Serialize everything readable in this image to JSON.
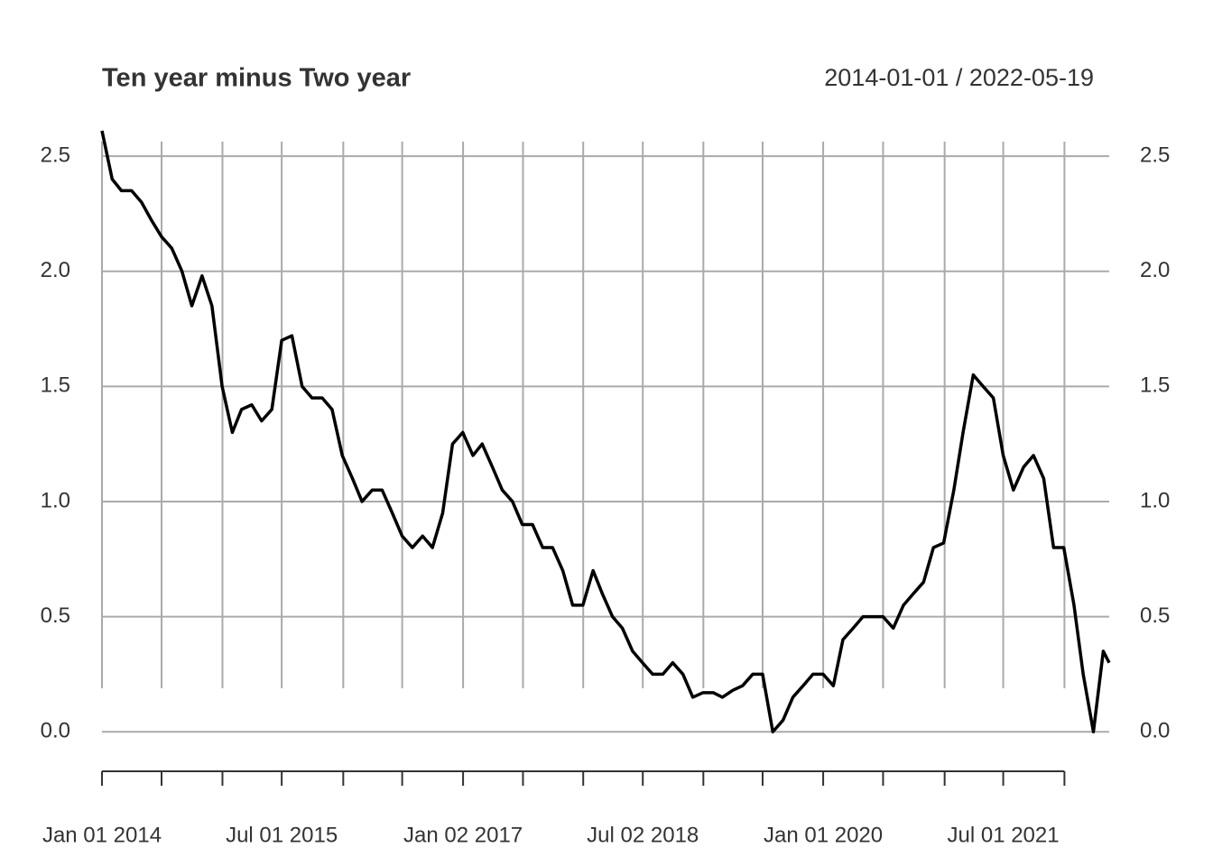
{
  "chart_data": {
    "type": "line",
    "title": "Ten year minus Two year",
    "subtitle": "2014-01-01 / 2022-05-19",
    "x": [
      "2014-01-01",
      "2014-02-01",
      "2014-03-01",
      "2014-04-01",
      "2014-05-01",
      "2014-06-01",
      "2014-07-01",
      "2014-08-01",
      "2014-09-01",
      "2014-10-01",
      "2014-11-01",
      "2014-12-01",
      "2015-01-01",
      "2015-02-01",
      "2015-03-01",
      "2015-04-01",
      "2015-05-01",
      "2015-06-01",
      "2015-07-01",
      "2015-08-01",
      "2015-09-01",
      "2015-10-01",
      "2015-11-01",
      "2015-12-01",
      "2016-01-01",
      "2016-02-01",
      "2016-03-01",
      "2016-04-01",
      "2016-05-01",
      "2016-06-01",
      "2016-07-01",
      "2016-08-01",
      "2016-09-01",
      "2016-10-01",
      "2016-11-01",
      "2016-12-01",
      "2017-01-01",
      "2017-02-01",
      "2017-03-01",
      "2017-04-01",
      "2017-05-01",
      "2017-06-01",
      "2017-07-01",
      "2017-08-01",
      "2017-09-01",
      "2017-10-01",
      "2017-11-01",
      "2017-12-01",
      "2018-01-01",
      "2018-02-01",
      "2018-03-01",
      "2018-04-01",
      "2018-05-01",
      "2018-06-01",
      "2018-07-01",
      "2018-08-01",
      "2018-09-01",
      "2018-10-01",
      "2018-11-01",
      "2018-12-01",
      "2019-01-01",
      "2019-02-01",
      "2019-03-01",
      "2019-04-01",
      "2019-05-01",
      "2019-06-01",
      "2019-07-01",
      "2019-08-01",
      "2019-09-01",
      "2019-10-01",
      "2019-11-01",
      "2019-12-01",
      "2020-01-01",
      "2020-02-01",
      "2020-03-01",
      "2020-04-01",
      "2020-05-01",
      "2020-06-01",
      "2020-07-01",
      "2020-08-01",
      "2020-09-01",
      "2020-10-01",
      "2020-11-01",
      "2020-12-01",
      "2021-01-01",
      "2021-02-01",
      "2021-03-01",
      "2021-04-01",
      "2021-05-01",
      "2021-06-01",
      "2021-07-01",
      "2021-08-01",
      "2021-09-01",
      "2021-10-01",
      "2021-11-01",
      "2021-12-01",
      "2022-01-01",
      "2022-02-01",
      "2022-03-01",
      "2022-04-01",
      "2022-05-01",
      "2022-05-19"
    ],
    "series": [
      {
        "name": "Ten year minus Two year",
        "color": "#000000",
        "values": [
          2.61,
          2.4,
          2.35,
          2.35,
          2.3,
          2.22,
          2.15,
          2.1,
          2.0,
          1.85,
          1.98,
          1.85,
          1.5,
          1.3,
          1.4,
          1.42,
          1.35,
          1.4,
          1.7,
          1.72,
          1.5,
          1.45,
          1.45,
          1.4,
          1.2,
          1.1,
          1.0,
          1.05,
          1.05,
          0.95,
          0.85,
          0.8,
          0.85,
          0.8,
          0.95,
          1.25,
          1.3,
          1.2,
          1.25,
          1.15,
          1.05,
          1.0,
          0.9,
          0.9,
          0.8,
          0.8,
          0.7,
          0.55,
          0.55,
          0.7,
          0.6,
          0.5,
          0.45,
          0.35,
          0.3,
          0.25,
          0.25,
          0.3,
          0.25,
          0.15,
          0.17,
          0.17,
          0.15,
          0.18,
          0.2,
          0.25,
          0.25,
          0.0,
          0.05,
          0.15,
          0.2,
          0.25,
          0.25,
          0.2,
          0.4,
          0.45,
          0.5,
          0.5,
          0.5,
          0.45,
          0.55,
          0.6,
          0.65,
          0.8,
          0.82,
          1.05,
          1.3,
          1.55,
          1.5,
          1.45,
          1.2,
          1.05,
          1.15,
          1.2,
          1.1,
          0.8,
          0.8,
          0.55,
          0.25,
          0.0,
          0.35,
          0.3
        ]
      }
    ],
    "xlim": [
      "2014-01-01",
      "2022-05-19"
    ],
    "xticks": [
      {
        "value": "2014-01-01",
        "label": "Jan 01 2014"
      },
      {
        "value": "2014-07-01",
        "label": null
      },
      {
        "value": "2015-01-02",
        "label": null
      },
      {
        "value": "2015-07-01",
        "label": "Jul 01 2015"
      },
      {
        "value": "2016-01-04",
        "label": null
      },
      {
        "value": "2016-07-01",
        "label": null
      },
      {
        "value": "2017-01-02",
        "label": "Jan 02 2017"
      },
      {
        "value": "2017-07-03",
        "label": null
      },
      {
        "value": "2018-01-02",
        "label": null
      },
      {
        "value": "2018-07-02",
        "label": "Jul 02 2018"
      },
      {
        "value": "2019-01-02",
        "label": null
      },
      {
        "value": "2019-07-01",
        "label": null
      },
      {
        "value": "2020-01-01",
        "label": "Jan 01 2020"
      },
      {
        "value": "2020-07-01",
        "label": null
      },
      {
        "value": "2021-01-04",
        "label": null
      },
      {
        "value": "2021-07-01",
        "label": "Jul 01 2021"
      },
      {
        "value": "2022-01-03",
        "label": null
      }
    ],
    "ylim": [
      -0.05,
      2.61
    ],
    "yticks": [
      {
        "value": 0,
        "label": "0.0"
      },
      0.5,
      {
        "value": 1,
        "label": "1.0"
      },
      1.5,
      {
        "value": 2,
        "label": "2.0"
      },
      2.5
    ],
    "grid": true
  }
}
